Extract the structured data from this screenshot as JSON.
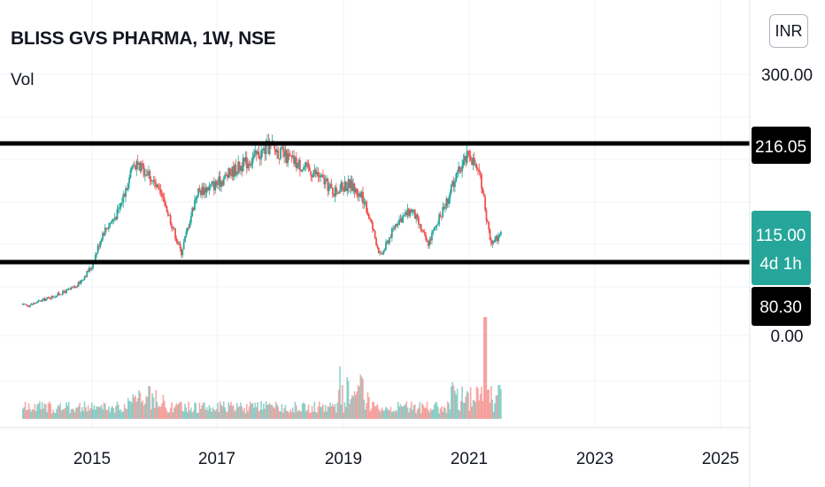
{
  "header": {
    "title": "BLISS GVS PHARMA, 1W, NSE",
    "indicator": "Vol",
    "currency": "INR"
  },
  "colors": {
    "up": "#26a69a",
    "down": "#ef5350",
    "level": "#000000",
    "price_tag": "#26a69a"
  },
  "chart_data": {
    "type": "candlestick",
    "x_ticks": [
      "2015",
      "2017",
      "2019",
      "2021",
      "2023",
      "2025"
    ],
    "y_ticks": [
      "300.00",
      "0.00"
    ],
    "price_scale": {
      "min": 0,
      "max": 300
    },
    "horizontal_levels": [
      {
        "label": "216.05",
        "value": 216.05
      },
      {
        "label": "80.30",
        "value": 80.3
      }
    ],
    "last_price": {
      "label": "115.00",
      "value": 115.0,
      "countdown": "4d 1h"
    },
    "series": [
      {
        "date": "2014-01",
        "close": 35
      },
      {
        "date": "2014-06",
        "close": 46
      },
      {
        "date": "2014-10",
        "close": 56
      },
      {
        "date": "2015-01",
        "close": 80
      },
      {
        "date": "2015-03",
        "close": 118
      },
      {
        "date": "2015-06",
        "close": 142
      },
      {
        "date": "2015-09",
        "close": 200
      },
      {
        "date": "2015-12",
        "close": 185
      },
      {
        "date": "2016-03",
        "close": 150
      },
      {
        "date": "2016-06",
        "close": 95
      },
      {
        "date": "2016-09",
        "close": 165
      },
      {
        "date": "2017-01",
        "close": 175
      },
      {
        "date": "2017-04",
        "close": 190
      },
      {
        "date": "2017-08",
        "close": 205
      },
      {
        "date": "2017-11",
        "close": 218
      },
      {
        "date": "2018-02",
        "close": 205
      },
      {
        "date": "2018-05",
        "close": 195
      },
      {
        "date": "2018-08",
        "close": 185
      },
      {
        "date": "2018-11",
        "close": 165
      },
      {
        "date": "2019-02",
        "close": 175
      },
      {
        "date": "2019-05",
        "close": 155
      },
      {
        "date": "2019-08",
        "close": 90
      },
      {
        "date": "2019-11",
        "close": 130
      },
      {
        "date": "2020-02",
        "close": 145
      },
      {
        "date": "2020-05",
        "close": 105
      },
      {
        "date": "2020-08",
        "close": 145
      },
      {
        "date": "2020-11",
        "close": 190
      },
      {
        "date": "2021-01",
        "close": 210
      },
      {
        "date": "2021-03",
        "close": 180
      },
      {
        "date": "2021-05",
        "close": 108
      },
      {
        "date": "2021-07",
        "close": 115
      }
    ]
  }
}
